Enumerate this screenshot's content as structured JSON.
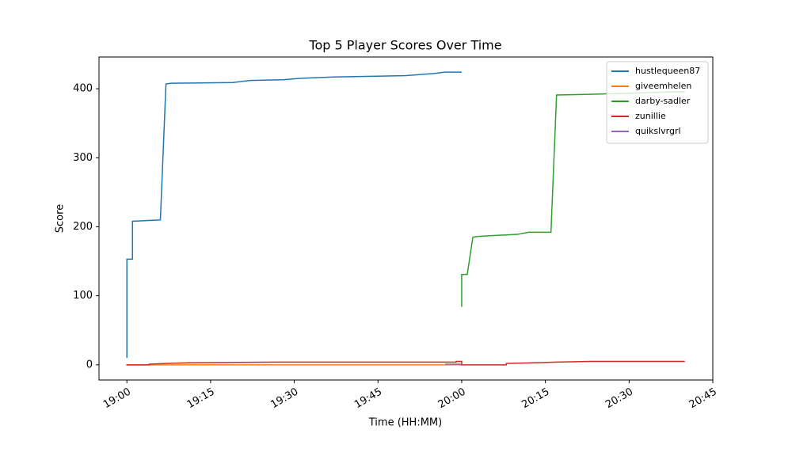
{
  "chart_data": {
    "type": "line",
    "title": "Top 5 Player Scores Over Time",
    "xlabel": "Time (HH:MM)",
    "ylabel": "Score",
    "xlim": [
      "18:55",
      "20:45"
    ],
    "xticks": [
      "19:00",
      "19:15",
      "19:30",
      "19:45",
      "20:00",
      "20:15",
      "20:30",
      "20:45"
    ],
    "ylim": [
      -22,
      446
    ],
    "yticks": [
      0,
      100,
      200,
      300,
      400
    ],
    "legend": "upper right",
    "grid": false,
    "series": [
      {
        "name": "hustlequeen87",
        "color": "#1f77b4",
        "x": [
          "19:00",
          "19:00",
          "19:01",
          "19:01",
          "19:06",
          "19:07",
          "19:08",
          "19:19",
          "19:22",
          "19:28",
          "19:31",
          "19:37",
          "19:50",
          "19:55",
          "19:57",
          "20:00"
        ],
        "values": [
          10,
          153,
          153,
          208,
          210,
          407,
          408,
          409,
          412,
          413,
          415,
          417,
          419,
          422,
          424,
          424
        ]
      },
      {
        "name": "giveemhelen",
        "color": "#ff7f0e",
        "x": [
          "19:00",
          "19:30",
          "20:00"
        ],
        "values": [
          0,
          0,
          0
        ]
      },
      {
        "name": "darby-sadler",
        "color": "#2ca02c",
        "x": [
          "20:00",
          "20:00",
          "20:01",
          "20:02",
          "20:03",
          "20:05",
          "20:10",
          "20:12",
          "20:16",
          "20:17",
          "20:23",
          "20:28",
          "20:40"
        ],
        "values": [
          84,
          131,
          131,
          185,
          186,
          187,
          189,
          192,
          192,
          391,
          392,
          393,
          396
        ]
      },
      {
        "name": "zunillie",
        "color": "#d62728",
        "x": [
          "19:00",
          "19:00",
          "19:04",
          "19:04",
          "19:07",
          "19:11",
          "19:27",
          "19:59",
          "19:59",
          "20:00",
          "20:00",
          "20:08",
          "20:08",
          "20:13",
          "20:17",
          "20:23",
          "20:40"
        ],
        "values": [
          1,
          0,
          0,
          1,
          2,
          3,
          4,
          4,
          5,
          5,
          0,
          0,
          2,
          3,
          4,
          5,
          5
        ]
      },
      {
        "name": "quikslvrgrl",
        "color": "#9467bd",
        "x": [
          "19:57",
          "20:00"
        ],
        "values": [
          1,
          1
        ]
      }
    ]
  }
}
